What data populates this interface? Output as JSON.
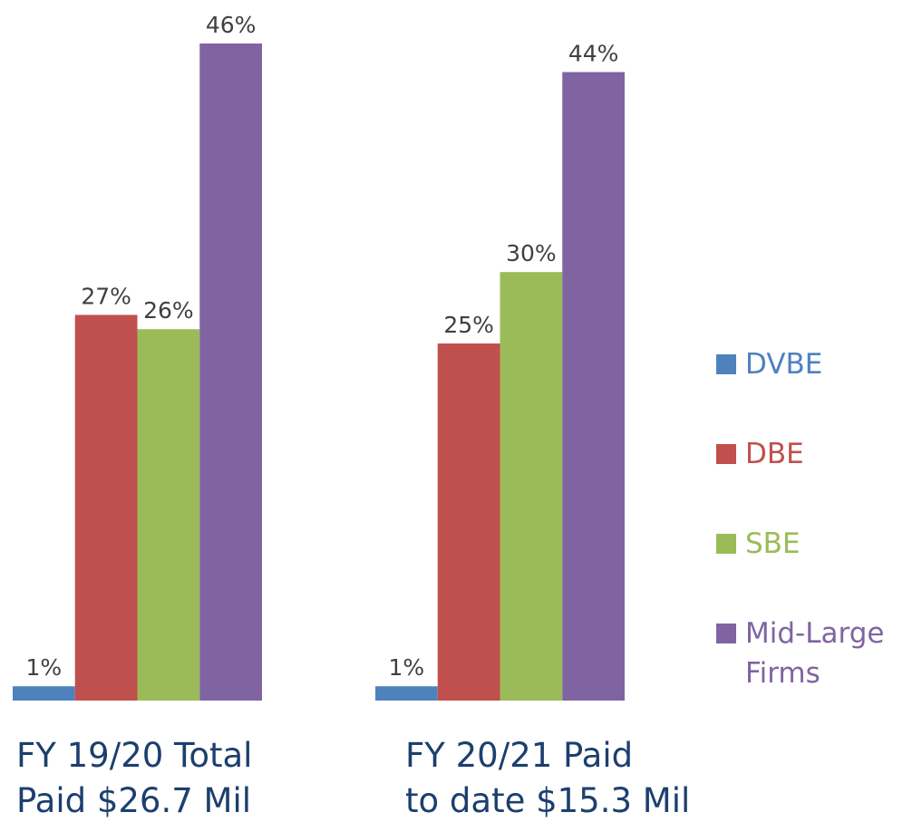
{
  "chart_data": {
    "type": "bar",
    "categories": [
      [
        "FY 19/20 Total",
        "Paid $26.7 Mil"
      ],
      [
        "FY 20/21 Paid",
        "to date $15.3 Mil"
      ]
    ],
    "series": [
      {
        "name": "DVBE",
        "color": "#4f81bd",
        "values": [
          1,
          1
        ],
        "value_labels": [
          "1%",
          "1%"
        ]
      },
      {
        "name": "DBE",
        "color": "#c0504d",
        "values": [
          27,
          25
        ],
        "value_labels": [
          "27%",
          "25%"
        ]
      },
      {
        "name": "SBE",
        "color": "#9bbb59",
        "values": [
          26,
          30
        ],
        "value_labels": [
          "26%",
          "30%"
        ]
      },
      {
        "name": "Mid-Large Firms",
        "color": "#8064a2",
        "values": [
          46,
          44
        ],
        "value_labels": [
          "46%",
          "44%"
        ]
      }
    ],
    "legend": "right"
  }
}
